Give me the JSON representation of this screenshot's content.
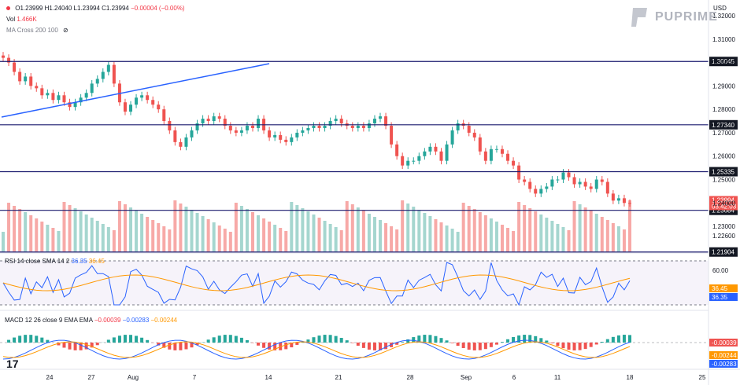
{
  "legend": {
    "ohlc": {
      "o": "O1.23999",
      "h": "H1.24040",
      "l": "L1.23994",
      "c": "C1.23994",
      "chg": "−0.00004 (−0.00%)"
    },
    "vol_label": "Vol",
    "vol_value": "1.466K",
    "ma_label": "MA Cross 200 100",
    "rsi_label": "RSI 14 close SMA 14 2",
    "rsi_v1": "36.35",
    "rsi_v2": "36.45",
    "macd_label": "MACD 12 26 close 9 EMA EMA",
    "macd_v1": "−0.00039",
    "macd_v2": "−0.00283",
    "macd_v3": "−0.00244"
  },
  "brand": "PUPRIME",
  "currency": "USD",
  "colors": {
    "up": "#26a69a",
    "down": "#ef5350",
    "hline": "#1a1a6e",
    "trend": "#2962ff",
    "rsi": "#2962ff",
    "rsi_sma": "#ff9800",
    "macd": "#2962ff",
    "signal": "#ff9800"
  },
  "chart_data": {
    "type": "candlestick",
    "symbol": "GBPUSD",
    "x_ticks": [
      "24",
      "27",
      "Aug",
      "7",
      "14",
      "21",
      "28",
      "Sep",
      "6",
      "11",
      "18",
      "25"
    ],
    "price_axis": [
      "1.32000",
      "1.31000",
      "1.30000",
      "1.29000",
      "1.28000",
      "1.27000",
      "1.26000",
      "1.25000",
      "1.24000",
      "1.23000",
      "1.22600"
    ],
    "horizontal_levels": [
      "1.30045",
      "1.27340",
      "1.25335",
      "1.23684",
      "1.21904"
    ],
    "last_price": "1.23994",
    "countdown": "03:42:03",
    "close_series": [
      1.302,
      1.3,
      1.296,
      1.292,
      1.294,
      1.29,
      1.289,
      1.286,
      1.287,
      1.284,
      1.286,
      1.283,
      1.281,
      1.283,
      1.285,
      1.287,
      1.291,
      1.293,
      1.296,
      1.299,
      1.291,
      1.283,
      1.279,
      1.282,
      1.285,
      1.286,
      1.284,
      1.282,
      1.28,
      1.275,
      1.271,
      1.266,
      1.264,
      1.268,
      1.271,
      1.274,
      1.276,
      1.275,
      1.277,
      1.276,
      1.273,
      1.271,
      1.27,
      1.271,
      1.273,
      1.272,
      1.276,
      1.271,
      1.268,
      1.269,
      1.267,
      1.266,
      1.268,
      1.27,
      1.271,
      1.272,
      1.273,
      1.272,
      1.273,
      1.275,
      1.276,
      1.274,
      1.273,
      1.272,
      1.273,
      1.272,
      1.274,
      1.276,
      1.277,
      1.273,
      1.265,
      1.26,
      1.256,
      1.258,
      1.258,
      1.26,
      1.262,
      1.264,
      1.262,
      1.258,
      1.265,
      1.271,
      1.274,
      1.273,
      1.27,
      1.268,
      1.262,
      1.258,
      1.263,
      1.263,
      1.261,
      1.258,
      1.256,
      1.25,
      1.249,
      1.246,
      1.244,
      1.246,
      1.247,
      1.25,
      1.25,
      1.253,
      1.251,
      1.248,
      1.249,
      1.247,
      1.246,
      1.25,
      1.249,
      1.244,
      1.241,
      1.242,
      1.24,
      1.2399
    ],
    "rsi_axis": [
      "60.00",
      "36.45",
      "36.35"
    ],
    "macd_axis": [
      "-0.00039",
      "-0.00244",
      "-0.00283"
    ]
  }
}
